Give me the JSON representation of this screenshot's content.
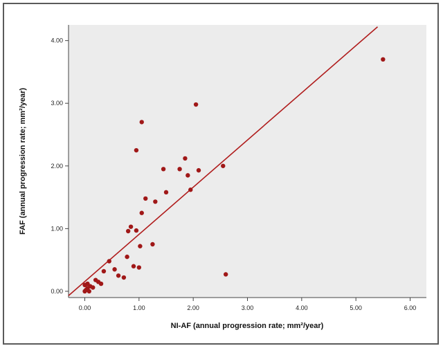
{
  "chart_data": {
    "type": "scatter",
    "title": "",
    "xlabel": "NI-AF (annual progression rate; mm²/year)",
    "ylabel": "FAF (annual progression rate; mm²/year)",
    "xlim": [
      -0.3,
      6.3
    ],
    "ylim": [
      -0.1,
      4.25
    ],
    "xticks": [
      0,
      1,
      2,
      3,
      4,
      5,
      6
    ],
    "yticks": [
      0,
      1,
      2,
      3,
      4
    ],
    "xtick_labels": [
      "0.00",
      "1.00",
      "2.00",
      "3.00",
      "4.00",
      "5.00",
      "6.00"
    ],
    "ytick_labels": [
      "0.00",
      "1.00",
      "2.00",
      "3.00",
      "4.00"
    ],
    "grid": false,
    "plot_background": "#ececec",
    "point_color": "#a01818",
    "line_color": "#b01c1c",
    "fit_line": {
      "x": [
        -0.3,
        5.4
      ],
      "y": [
        -0.07,
        4.22
      ]
    },
    "points": [
      [
        0.0,
        0.0
      ],
      [
        0.02,
        0.02
      ],
      [
        0.05,
        0.05
      ],
      [
        0.08,
        0.0
      ],
      [
        0.0,
        0.1
      ],
      [
        0.05,
        0.12
      ],
      [
        0.1,
        0.08
      ],
      [
        0.15,
        0.06
      ],
      [
        0.2,
        0.18
      ],
      [
        0.25,
        0.15
      ],
      [
        0.3,
        0.12
      ],
      [
        0.35,
        0.32
      ],
      [
        0.45,
        0.48
      ],
      [
        0.55,
        0.35
      ],
      [
        0.62,
        0.25
      ],
      [
        0.72,
        0.22
      ],
      [
        0.78,
        0.55
      ],
      [
        0.8,
        0.96
      ],
      [
        0.85,
        1.03
      ],
      [
        0.9,
        0.4
      ],
      [
        0.95,
        0.97
      ],
      [
        1.0,
        0.38
      ],
      [
        1.02,
        0.72
      ],
      [
        1.05,
        1.25
      ],
      [
        1.12,
        1.48
      ],
      [
        0.95,
        2.25
      ],
      [
        1.05,
        2.7
      ],
      [
        1.25,
        0.75
      ],
      [
        1.3,
        1.43
      ],
      [
        1.45,
        1.95
      ],
      [
        1.5,
        1.58
      ],
      [
        1.75,
        1.95
      ],
      [
        1.85,
        2.12
      ],
      [
        1.9,
        1.85
      ],
      [
        1.95,
        1.62
      ],
      [
        2.05,
        2.98
      ],
      [
        2.1,
        1.93
      ],
      [
        2.55,
        2.0
      ],
      [
        2.6,
        0.27
      ],
      [
        5.5,
        3.7
      ]
    ]
  }
}
